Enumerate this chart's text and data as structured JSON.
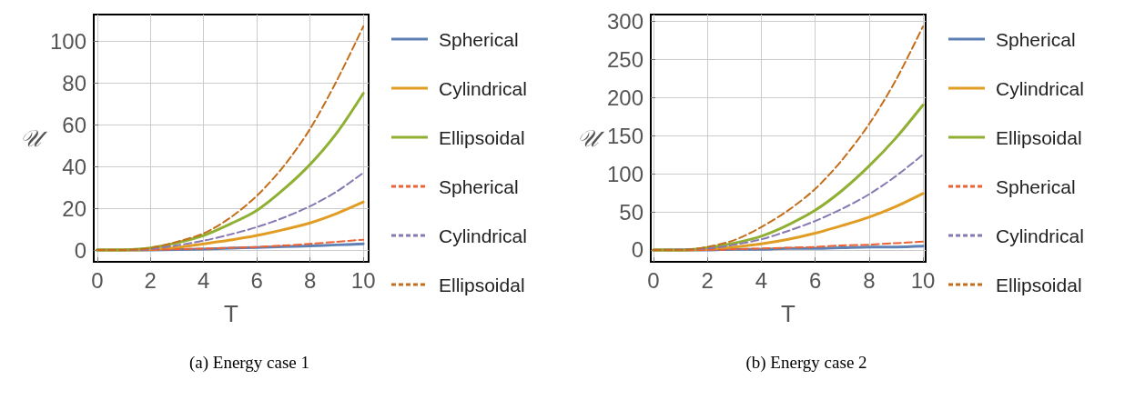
{
  "chart_data": [
    {
      "type": "line",
      "xlabel": "T",
      "ylabel": "𝒰",
      "x": [
        0,
        1,
        2,
        3,
        4,
        5,
        6,
        7,
        8,
        9,
        10
      ],
      "xlim": [
        -0.13,
        10.2
      ],
      "xticks": [
        0,
        2,
        4,
        6,
        8,
        10
      ],
      "ylim": [
        -5.6,
        112.7
      ],
      "yticks": [
        0,
        20,
        40,
        60,
        80,
        100
      ],
      "grid": true,
      "legend": "right",
      "annotations": [
        "(a) Energy case 1"
      ],
      "series": [
        {
          "name": "Spherical",
          "color": "#5e81b5",
          "line_style": "solid",
          "values": [
            0,
            0,
            0.1,
            0.3,
            0.5,
            0.9,
            1.3,
            1.7,
            2,
            2.5,
            3
          ]
        },
        {
          "name": "Cylindrical",
          "color": "#e19c24",
          "line_style": "solid",
          "values": [
            0,
            0,
            0.3,
            1.3,
            3,
            4.8,
            7,
            9.8,
            13,
            17.5,
            23
          ]
        },
        {
          "name": "Ellipsoidal",
          "color": "#8fb032",
          "line_style": "solid",
          "values": [
            0,
            0.1,
            1,
            3.5,
            7,
            12.5,
            19,
            29,
            41,
            56,
            75
          ]
        },
        {
          "name": "Spherical",
          "color": "#eb6235",
          "line_style": "dashed",
          "values": [
            0,
            0,
            0.1,
            0.4,
            0.7,
            1.1,
            1.5,
            2.2,
            3,
            4,
            5
          ]
        },
        {
          "name": "Cylindrical",
          "color": "#8778b3",
          "line_style": "dashed",
          "values": [
            0,
            0,
            0.5,
            2.3,
            4.5,
            7.5,
            11,
            15.5,
            21,
            28,
            37
          ]
        },
        {
          "name": "Ellipsoidal",
          "color": "#c56e1a",
          "line_style": "dashed",
          "values": [
            0,
            0.1,
            1,
            4,
            8,
            15.5,
            26,
            40,
            58,
            81,
            107
          ]
        }
      ]
    },
    {
      "type": "line",
      "xlabel": "T",
      "ylabel": "𝒰",
      "x": [
        0,
        1,
        2,
        3,
        4,
        5,
        6,
        7,
        8,
        9,
        10
      ],
      "xlim": [
        -0.1,
        10.1
      ],
      "xticks": [
        0,
        2,
        4,
        6,
        8,
        10
      ],
      "ylim": [
        -15.5,
        308.6
      ],
      "yticks": [
        0,
        50,
        100,
        150,
        200,
        250,
        300
      ],
      "grid": true,
      "legend": "right",
      "annotations": [
        "(b) Energy case 2"
      ],
      "series": [
        {
          "name": "Spherical",
          "color": "#5e81b5",
          "line_style": "solid",
          "values": [
            0,
            0,
            0,
            1,
            1,
            2,
            2,
            3,
            4,
            4,
            5
          ]
        },
        {
          "name": "Cylindrical",
          "color": "#e19c24",
          "line_style": "solid",
          "values": [
            0,
            0,
            1,
            4,
            8,
            14,
            22,
            32,
            43,
            57,
            74
          ]
        },
        {
          "name": "Ellipsoidal",
          "color": "#8fb032",
          "line_style": "solid",
          "values": [
            0,
            0,
            3,
            9,
            18,
            33,
            52,
            78,
            110,
            147,
            190
          ]
        },
        {
          "name": "Spherical",
          "color": "#eb6235",
          "line_style": "dashed",
          "values": [
            0,
            0,
            0,
            1,
            2,
            3,
            4,
            6,
            7,
            9,
            11
          ]
        },
        {
          "name": "Cylindrical",
          "color": "#8778b3",
          "line_style": "dashed",
          "values": [
            0,
            null,
            2,
            7,
            14,
            25,
            38,
            54,
            73,
            97,
            125
          ]
        },
        {
          "name": "Ellipsoidal",
          "color": "#c56e1a",
          "line_style": "dashed",
          "values": [
            0,
            0,
            4,
            13,
            30,
            52,
            80,
            118,
            165,
            223,
            293
          ]
        }
      ]
    }
  ]
}
